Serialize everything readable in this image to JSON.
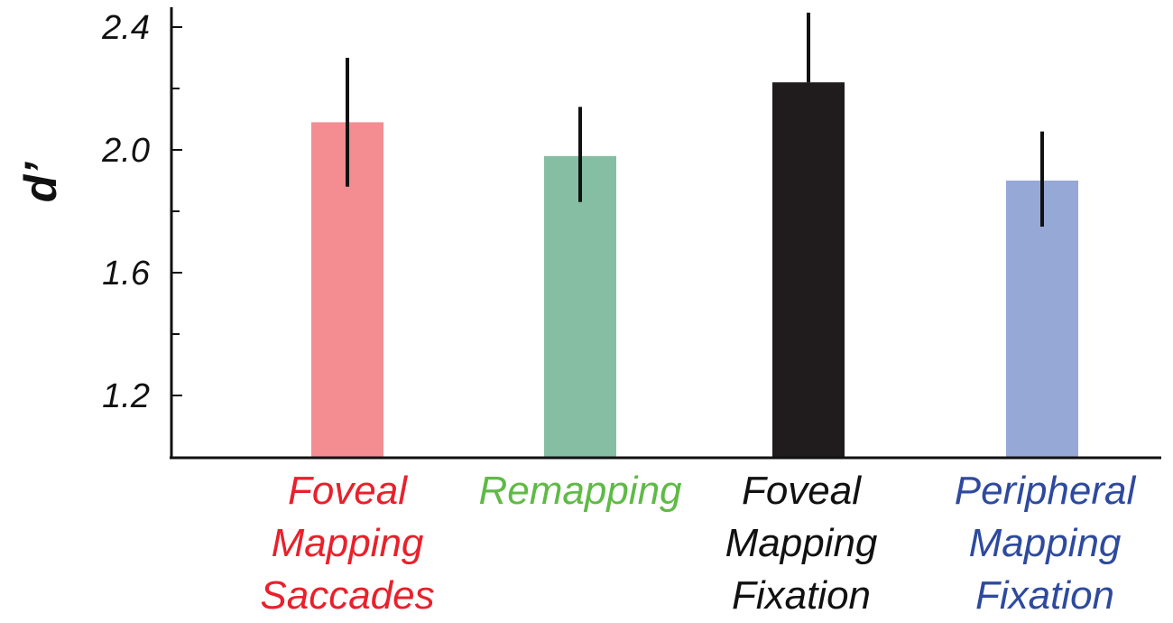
{
  "chart_data": {
    "type": "bar",
    "title": "",
    "xlabel": "",
    "ylabel": "d’",
    "ylim": [
      1.0,
      2.45
    ],
    "yticks": [
      "1.2",
      "1.6",
      "2.0",
      "2.4"
    ],
    "grid": false,
    "categories": [
      {
        "lines": [
          "Foveal",
          "Mapping",
          "Saccades"
        ],
        "color": "#e8212b"
      },
      {
        "lines": [
          "Remapping"
        ],
        "color": "#5fba46"
      },
      {
        "lines": [
          "Foveal",
          "Mapping",
          "Fixation"
        ],
        "color": "#111111"
      },
      {
        "lines": [
          "Peripheral",
          "Mapping",
          "Fixation"
        ],
        "color": "#2e4a9e"
      }
    ],
    "values": [
      2.09,
      1.98,
      2.22,
      1.9
    ],
    "error_upper": [
      2.3,
      2.14,
      2.45,
      2.06
    ],
    "error_lower": [
      1.88,
      1.83,
      2.22,
      1.75
    ],
    "bar_colors": [
      "#f38d92",
      "#85bea2",
      "#201c1d",
      "#96a8d6"
    ]
  }
}
